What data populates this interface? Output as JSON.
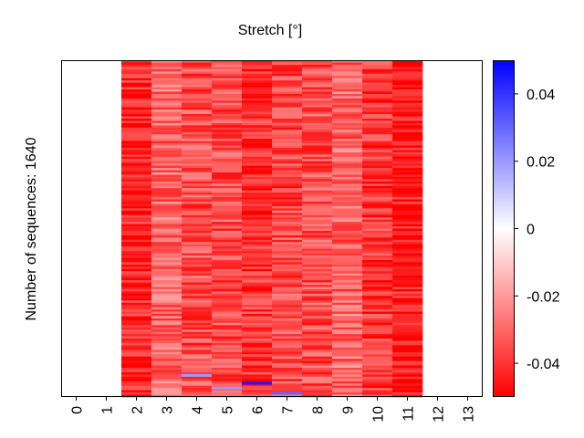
{
  "chart_data": {
    "type": "heatmap",
    "title": "Stretch [°]",
    "ylabel": "Number of sequences: 1640",
    "xlabel": "",
    "x_tick_labels": [
      "0",
      "1",
      "2",
      "3",
      "4",
      "5",
      "6",
      "7",
      "8",
      "9",
      "10",
      "11",
      "12",
      "13"
    ],
    "columns": [
      {
        "index": 0,
        "has_data": false,
        "typical_value": null
      },
      {
        "index": 1,
        "has_data": false,
        "typical_value": null
      },
      {
        "index": 2,
        "has_data": true,
        "typical_value": -0.043
      },
      {
        "index": 3,
        "has_data": true,
        "typical_value": -0.03
      },
      {
        "index": 4,
        "has_data": true,
        "typical_value": -0.035
      },
      {
        "index": 5,
        "has_data": true,
        "typical_value": -0.035
      },
      {
        "index": 6,
        "has_data": true,
        "typical_value": -0.04
      },
      {
        "index": 7,
        "has_data": true,
        "typical_value": -0.036
      },
      {
        "index": 8,
        "has_data": true,
        "typical_value": -0.035
      },
      {
        "index": 9,
        "has_data": true,
        "typical_value": -0.03
      },
      {
        "index": 10,
        "has_data": true,
        "typical_value": -0.04
      },
      {
        "index": 11,
        "has_data": true,
        "typical_value": -0.046
      },
      {
        "index": 12,
        "has_data": false,
        "typical_value": null
      },
      {
        "index": 13,
        "has_data": false,
        "typical_value": null
      }
    ],
    "n_sequences": 1640,
    "colorbar": {
      "colormap": "bwr",
      "vmin": -0.05,
      "vmax": 0.05,
      "tick_values": [
        0.04,
        0.02,
        0,
        -0.02,
        -0.04
      ],
      "tick_labels": [
        "0.04",
        "0.02",
        "0",
        "-0.02",
        "-0.04"
      ]
    },
    "colors": {
      "low": "#ff0000",
      "mid": "#ffffff",
      "high": "#0000ff"
    }
  }
}
